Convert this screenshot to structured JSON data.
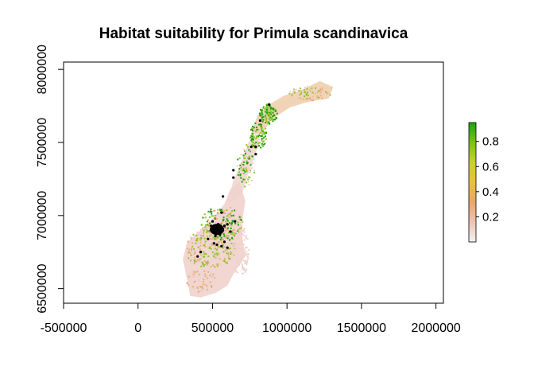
{
  "chart_data": {
    "type": "heatmap",
    "title": "Habitat suitability for Primula scandinavica",
    "xlabel": "",
    "ylabel": "",
    "xlim": [
      -500000,
      2050000
    ],
    "ylim": [
      6400000,
      8050000
    ],
    "x_ticks": [
      -500000,
      0,
      500000,
      1000000,
      1500000,
      2000000
    ],
    "x_tick_labels": [
      "-500000",
      "0",
      "500000",
      "1000000",
      "1500000",
      "2000000"
    ],
    "y_ticks": [
      6500000,
      7000000,
      7500000,
      8000000
    ],
    "y_tick_labels": [
      "6500000",
      "7000000",
      "7500000",
      "8000000"
    ],
    "legend": {
      "placement": "right",
      "min": 0,
      "max": 0.95,
      "ticks": [
        0.2,
        0.4,
        0.6,
        0.8
      ],
      "tick_labels": [
        "0.2",
        "0.4",
        "0.6",
        "0.8"
      ],
      "colors": [
        "#f2f2f2",
        "#efc3b3",
        "#e9a66b",
        "#e8c23a",
        "#c6d22a",
        "#7cc212",
        "#1ea312"
      ]
    },
    "raster_colors": {
      "low": "#efd2cc",
      "mid": "#e6b07a",
      "high": "#8cc52a",
      "top": "#1f9a10"
    },
    "occurrences": [
      [
        880000,
        7760000
      ],
      [
        820000,
        7650000
      ],
      [
        790000,
        7470000
      ],
      [
        760000,
        7470000
      ],
      [
        790000,
        7420000
      ],
      [
        640000,
        7310000
      ],
      [
        640000,
        7260000
      ],
      [
        570000,
        7130000
      ],
      [
        560000,
        7020000
      ],
      [
        490000,
        6930000
      ],
      [
        510000,
        6920000
      ],
      [
        540000,
        6910000
      ],
      [
        530000,
        6890000
      ],
      [
        560000,
        6890000
      ],
      [
        520000,
        6880000
      ],
      [
        550000,
        6870000
      ],
      [
        570000,
        6900000
      ],
      [
        580000,
        6930000
      ],
      [
        620000,
        6890000
      ],
      [
        600000,
        6940000
      ],
      [
        650000,
        6960000
      ],
      [
        520000,
        6860000
      ],
      [
        540000,
        6940000
      ],
      [
        500000,
        6960000
      ],
      [
        470000,
        6840000
      ],
      [
        510000,
        6810000
      ],
      [
        580000,
        6820000
      ],
      [
        560000,
        6790000
      ],
      [
        600000,
        6780000
      ],
      [
        420000,
        6750000
      ],
      [
        400000,
        6720000
      ],
      [
        530000,
        6800000
      ],
      [
        545000,
        6905000
      ],
      [
        515000,
        6895000
      ]
    ]
  }
}
